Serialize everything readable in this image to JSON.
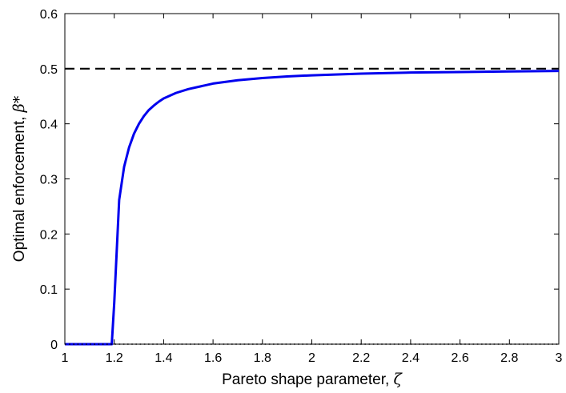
{
  "chart_data": {
    "type": "line",
    "xlabel": "Pareto shape parameter, ",
    "xlabel_symbol": "ζ",
    "ylabel": "Optimal enforcement, ",
    "ylabel_symbol": "β*",
    "xlim": [
      1,
      3
    ],
    "ylim": [
      0,
      0.6
    ],
    "xticks": [
      1,
      1.2,
      1.4,
      1.6,
      1.8,
      2,
      2.2,
      2.4,
      2.6,
      2.8,
      3
    ],
    "xtick_labels": [
      "1",
      "1.2",
      "1.4",
      "1.6",
      "1.8",
      "2",
      "2.2",
      "2.4",
      "2.6",
      "2.8",
      "3"
    ],
    "yticks": [
      0,
      0.1,
      0.2,
      0.3,
      0.4,
      0.5,
      0.6
    ],
    "ytick_labels": [
      "0",
      "0.1",
      "0.2",
      "0.3",
      "0.4",
      "0.5",
      "0.6"
    ],
    "grid": false,
    "series": [
      {
        "style": "solid",
        "color": "#0000ee",
        "x": [
          1.0,
          1.05,
          1.1,
          1.15,
          1.19,
          1.2,
          1.22,
          1.24,
          1.26,
          1.28,
          1.3,
          1.32,
          1.34,
          1.36,
          1.38,
          1.4,
          1.45,
          1.5,
          1.55,
          1.6,
          1.7,
          1.8,
          1.9,
          2.0,
          2.2,
          2.4,
          2.6,
          2.8,
          3.0
        ],
        "y": [
          0.0,
          0.0,
          0.0,
          0.0,
          0.0,
          0.075,
          0.262,
          0.322,
          0.357,
          0.382,
          0.4,
          0.414,
          0.425,
          0.433,
          0.44,
          0.446,
          0.456,
          0.463,
          0.468,
          0.473,
          0.479,
          0.483,
          0.486,
          0.488,
          0.491,
          0.493,
          0.494,
          0.495,
          0.496
        ]
      },
      {
        "style": "dashed",
        "color": "#000000",
        "x": [
          1,
          3
        ],
        "y": [
          0.5,
          0.5
        ]
      },
      {
        "style": "dotted",
        "color": "#000000",
        "x": [
          1,
          3
        ],
        "y": [
          0,
          0
        ]
      }
    ]
  }
}
